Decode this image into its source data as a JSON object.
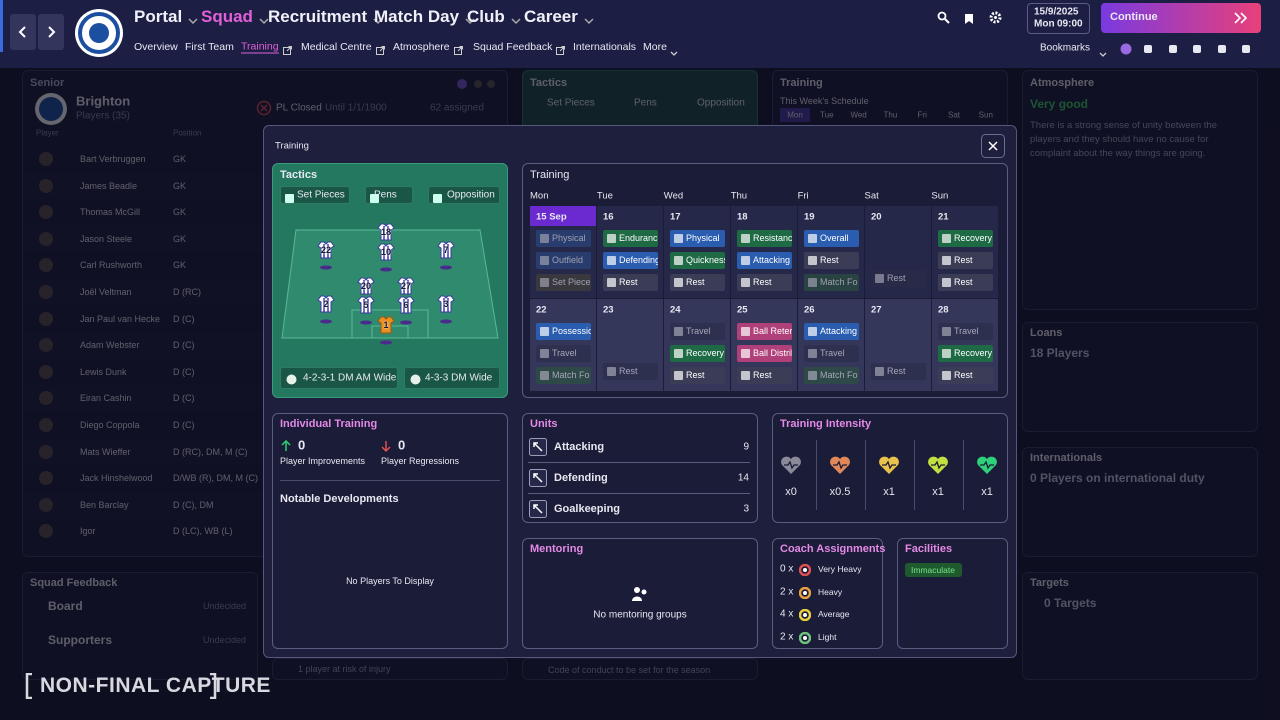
{
  "nav": {
    "main": [
      "Portal",
      "Squad",
      "Recruitment",
      "Match Day",
      "Club",
      "Career"
    ],
    "active_main": 1,
    "sub": [
      "Overview",
      "First Team",
      "Training",
      "Medical Centre",
      "Atmosphere",
      "Squad Feedback",
      "Internationals",
      "More"
    ],
    "active_sub": 2,
    "date": "15/9/2025",
    "day": "Mon",
    "time": "09:00",
    "continue": "Continue",
    "bookmarks": "Bookmarks"
  },
  "background": {
    "senior": {
      "title": "Senior",
      "club": "Brighton",
      "players": "Players (35)",
      "status": "PL Closed",
      "until": "Until 1/1/1900",
      "assigned": "62 assigned",
      "col_player": "Player",
      "col_position": "Position",
      "rows": [
        [
          "Bart Verbruggen",
          "GK"
        ],
        [
          "James Beadle",
          "GK"
        ],
        [
          "Thomas McGill",
          "GK"
        ],
        [
          "Jason Steele",
          "GK"
        ],
        [
          "Carl Rushworth",
          "GK"
        ],
        [
          "Joël Veltman",
          "D (RC)"
        ],
        [
          "Jan Paul van Hecke",
          "D (C)"
        ],
        [
          "Adam Webster",
          "D (C)"
        ],
        [
          "Lewis Dunk",
          "D (C)"
        ],
        [
          "Eiran Cashin",
          "D (C)"
        ],
        [
          "Diego Coppola",
          "D (C)"
        ],
        [
          "Mats Wieffer",
          "D (RC), DM, M (C)"
        ],
        [
          "Jack Hinshelwood",
          "D/WB (R), DM, M (C)"
        ],
        [
          "Ben Barclay",
          "D (C), DM"
        ],
        [
          "Igor",
          "D (LC), WB (L)"
        ]
      ]
    },
    "tactics": {
      "title": "Tactics",
      "tabs": [
        "Set Pieces",
        "Pens",
        "Opposition"
      ]
    },
    "training": {
      "title": "Training",
      "schedule": "This Week's Schedule",
      "days": [
        "Mon",
        "Tue",
        "Wed",
        "Thu",
        "Fri",
        "Sat",
        "Sun"
      ]
    },
    "atmosphere": {
      "title": "Atmosphere",
      "status": "Very good",
      "text": "There is a strong sense of unity between the players and they should have no cause for complaint about the way things are going."
    },
    "loans": {
      "title": "Loans",
      "value": "18 Players"
    },
    "internationals": {
      "title": "Internationals",
      "value": "0 Players on international duty"
    },
    "targets": {
      "title": "Targets",
      "value": "0 Targets"
    },
    "feedback": {
      "title": "Squad Feedback",
      "rows": [
        [
          "Board",
          "Undecided"
        ],
        [
          "Supporters",
          "Undecided"
        ]
      ]
    },
    "injury": "1 player at risk of injury",
    "conduct": "Code of conduct to be set for the season"
  },
  "modal": {
    "title": "Training",
    "tactics": {
      "title": "Tactics",
      "buttons": [
        "Set Pieces",
        "Pens",
        "Opposition"
      ],
      "players": [
        "18",
        "22",
        "10",
        "7",
        "20",
        "27",
        "2",
        "5",
        "6",
        "3",
        "1"
      ],
      "formations": [
        "4-2-3-1 DM AM Wide",
        "4-3-3 DM Wide"
      ]
    },
    "calendar": {
      "title": "Training",
      "days": [
        "Mon",
        "Tue",
        "Wed",
        "Thu",
        "Fri",
        "Sat",
        "Sun"
      ],
      "weeks": [
        [
          {
            "date": "15 Sep",
            "highlight": true,
            "sessions": [
              {
                "label": "Physical",
                "color": "#2a4f8a",
                "dim": true
              },
              {
                "label": "Outfield",
                "color": "#2a4f8a",
                "dim": true
              },
              {
                "label": "Set Piece",
                "color": "#4a4636",
                "dim": true
              }
            ]
          },
          {
            "date": "16",
            "sessions": [
              {
                "label": "Enduranc",
                "color": "#1e6a44"
              },
              {
                "label": "Defending",
                "color": "#2a5db0"
              },
              {
                "label": "Rest",
                "color": "#3b3d57"
              }
            ]
          },
          {
            "date": "17",
            "sessions": [
              {
                "label": "Physical",
                "color": "#2a5db0"
              },
              {
                "label": "Quickness",
                "color": "#1e6a44"
              },
              {
                "label": "Rest",
                "color": "#3b3d57"
              }
            ]
          },
          {
            "date": "18",
            "sessions": [
              {
                "label": "Resistanc",
                "color": "#1e6a44"
              },
              {
                "label": "Attacking",
                "color": "#2a5db0"
              },
              {
                "label": "Rest",
                "color": "#3b3d57"
              }
            ]
          },
          {
            "date": "19",
            "sessions": [
              {
                "label": "Overall",
                "color": "#2a5db0"
              },
              {
                "label": "Rest",
                "color": "#3b3d57"
              },
              {
                "label": "Match Fo",
                "color": "#2a5a3a",
                "dim": true
              }
            ]
          },
          {
            "date": "20",
            "sessions": [
              {
                "label": "Rest",
                "color": "#2a2c48",
                "dim": true
              }
            ]
          },
          {
            "date": "21",
            "sessions": [
              {
                "label": "Recovery",
                "color": "#1e6a44"
              },
              {
                "label": "Rest",
                "color": "#3b3d57"
              },
              {
                "label": "Rest",
                "color": "#3b3d57"
              }
            ]
          }
        ],
        [
          {
            "date": "22",
            "sessions": [
              {
                "label": "Possessio",
                "color": "#2a5db0"
              },
              {
                "label": "Travel",
                "color": "#2a2c48",
                "dim": true
              },
              {
                "label": "Match Fo",
                "color": "#2a5a3a",
                "dim": true
              }
            ]
          },
          {
            "date": "23",
            "sessions": [
              {
                "label": "Rest",
                "color": "#2a2c48",
                "dim": true
              }
            ]
          },
          {
            "date": "24",
            "sessions": [
              {
                "label": "Travel",
                "color": "#2a2c48",
                "dim": true
              },
              {
                "label": "Recovery",
                "color": "#1e6a44"
              },
              {
                "label": "Rest",
                "color": "#3b3d57"
              }
            ]
          },
          {
            "date": "25",
            "sessions": [
              {
                "label": "Ball Reter",
                "color": "#b0407a"
              },
              {
                "label": "Ball Distrib",
                "color": "#b0407a"
              },
              {
                "label": "Rest",
                "color": "#3b3d57"
              }
            ]
          },
          {
            "date": "26",
            "sessions": [
              {
                "label": "Attacking",
                "color": "#2a5db0"
              },
              {
                "label": "Travel",
                "color": "#2a2c48",
                "dim": true
              },
              {
                "label": "Match Fo",
                "color": "#2a5a3a",
                "dim": true
              }
            ]
          },
          {
            "date": "27",
            "sessions": [
              {
                "label": "Rest",
                "color": "#2a2c48",
                "dim": true
              }
            ]
          },
          {
            "date": "28",
            "sessions": [
              {
                "label": "Travel",
                "color": "#2a2c48",
                "dim": true
              },
              {
                "label": "Recovery",
                "color": "#1e6a44"
              },
              {
                "label": "Rest",
                "color": "#3b3d57"
              }
            ]
          }
        ]
      ]
    },
    "individual": {
      "title": "Individual Training",
      "improvements": {
        "value": "0",
        "label": "Player Improvements"
      },
      "regressions": {
        "value": "0",
        "label": "Player Regressions"
      },
      "notable": "Notable Developments",
      "empty": "No Players To Display"
    },
    "units": {
      "title": "Units",
      "rows": [
        {
          "label": "Attacking",
          "value": "9"
        },
        {
          "label": "Defending",
          "value": "14"
        },
        {
          "label": "Goalkeeping",
          "value": "3"
        }
      ]
    },
    "intensity": {
      "title": "Training Intensity",
      "items": [
        {
          "label": "x0",
          "color": "#8a8a9a"
        },
        {
          "label": "x0.5",
          "color": "#e0885a"
        },
        {
          "label": "x1",
          "color": "#e8c24a"
        },
        {
          "label": "x1",
          "color": "#c2e040"
        },
        {
          "label": "x1",
          "color": "#2ed07a"
        }
      ]
    },
    "mentoring": {
      "title": "Mentoring",
      "empty": "No mentoring groups"
    },
    "coach": {
      "title": "Coach Assignments",
      "rows": [
        {
          "count": "0 x",
          "label": "Very Heavy",
          "color": "#e05050"
        },
        {
          "count": "2 x",
          "label": "Heavy",
          "color": "#e8a040"
        },
        {
          "count": "4 x",
          "label": "Average",
          "color": "#e8d040"
        },
        {
          "count": "2 x",
          "label": "Light",
          "color": "#70c080"
        }
      ]
    },
    "facilities": {
      "title": "Facilities",
      "status": "Immaculate"
    }
  },
  "watermark": "NON-FINAL CAPTURE"
}
